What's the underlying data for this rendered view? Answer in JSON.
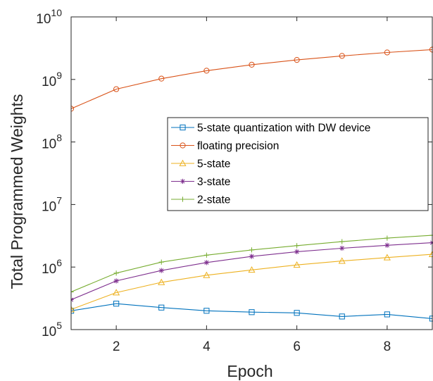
{
  "chart_data": {
    "type": "line",
    "title": "",
    "xlabel": "Epoch",
    "ylabel": "Total Programmed Weights",
    "xlim": [
      1,
      9
    ],
    "ylim": [
      100000,
      10000000000
    ],
    "yscale": "log",
    "x_ticks": [
      2,
      4,
      6,
      8
    ],
    "x_tick_labels": [
      "2",
      "4",
      "6",
      "8"
    ],
    "y_ticks": [
      100000,
      1000000,
      10000000,
      100000000,
      1000000000,
      10000000000
    ],
    "y_tick_bases": [
      "10",
      "10",
      "10",
      "10",
      "10",
      "10"
    ],
    "y_tick_exponents": [
      "5",
      "6",
      "7",
      "8",
      "9",
      "10"
    ],
    "grid": false,
    "legend_position": "center-right",
    "x": [
      1,
      2,
      3,
      4,
      5,
      6,
      7,
      8,
      9
    ],
    "series": [
      {
        "name": "5-state quantization with DW device",
        "color": "#0072BD",
        "marker": "square",
        "values": [
          200000,
          260000,
          225000,
          200000,
          190000,
          185000,
          162000,
          175000,
          150000
        ]
      },
      {
        "name": "floating precision",
        "color": "#D95319",
        "marker": "circle",
        "values": [
          340000000,
          700000000,
          1030000000,
          1380000000,
          1720000000,
          2050000000,
          2380000000,
          2700000000,
          3000000000
        ]
      },
      {
        "name": "5-state",
        "color": "#EDB120",
        "marker": "triangle",
        "values": [
          210000,
          390000,
          570000,
          740000,
          900000,
          1080000,
          1250000,
          1420000,
          1600000
        ]
      },
      {
        "name": "3-state",
        "color": "#7E2F8E",
        "marker": "star",
        "values": [
          300000,
          600000,
          880000,
          1180000,
          1480000,
          1760000,
          2000000,
          2230000,
          2450000
        ]
      },
      {
        "name": "2-state",
        "color": "#77AC30",
        "marker": "plus",
        "values": [
          400000,
          800000,
          1200000,
          1550000,
          1880000,
          2200000,
          2550000,
          2900000,
          3220000
        ]
      }
    ]
  }
}
